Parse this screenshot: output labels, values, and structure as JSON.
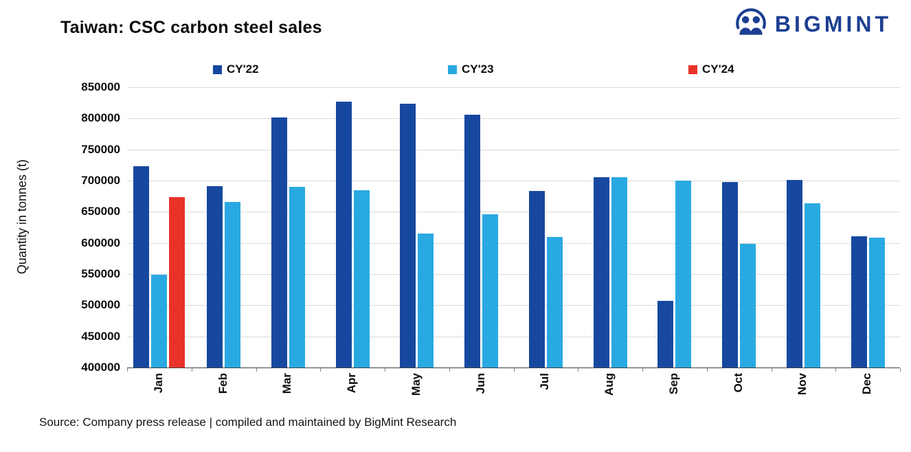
{
  "title": "Taiwan: CSC carbon steel sales",
  "logo": {
    "brand": "BIGMINT",
    "color": "#1C3F92"
  },
  "source": "Source: Company press release | compiled and maintained by BigMint Research",
  "chart_data": {
    "type": "bar",
    "title": "Taiwan: CSC carbon steel sales",
    "xlabel": "",
    "ylabel": "Quantity in tonnes (t)",
    "ylim": [
      400000,
      850000
    ],
    "ytick_step": 50000,
    "grid": true,
    "legend_position": "top",
    "categories": [
      "Jan",
      "Feb",
      "Mar",
      "Apr",
      "May",
      "Jun",
      "Jul",
      "Aug",
      "Sep",
      "Oct",
      "Nov",
      "Dec"
    ],
    "series": [
      {
        "name": "CY'22",
        "color": "#1748A0",
        "values": [
          723000,
          691000,
          801000,
          827000,
          824000,
          806000,
          683000,
          706000,
          507000,
          698000,
          701000,
          611000
        ]
      },
      {
        "name": "CY'23",
        "color": "#29A9E1",
        "values": [
          549000,
          666000,
          690000,
          685000,
          615000,
          646000,
          610000,
          705000,
          700000,
          599000,
          664000,
          609000
        ]
      },
      {
        "name": "CY'24",
        "color": "#E8332A",
        "values": [
          674000,
          null,
          null,
          null,
          null,
          null,
          null,
          null,
          null,
          null,
          null,
          null
        ]
      }
    ]
  }
}
